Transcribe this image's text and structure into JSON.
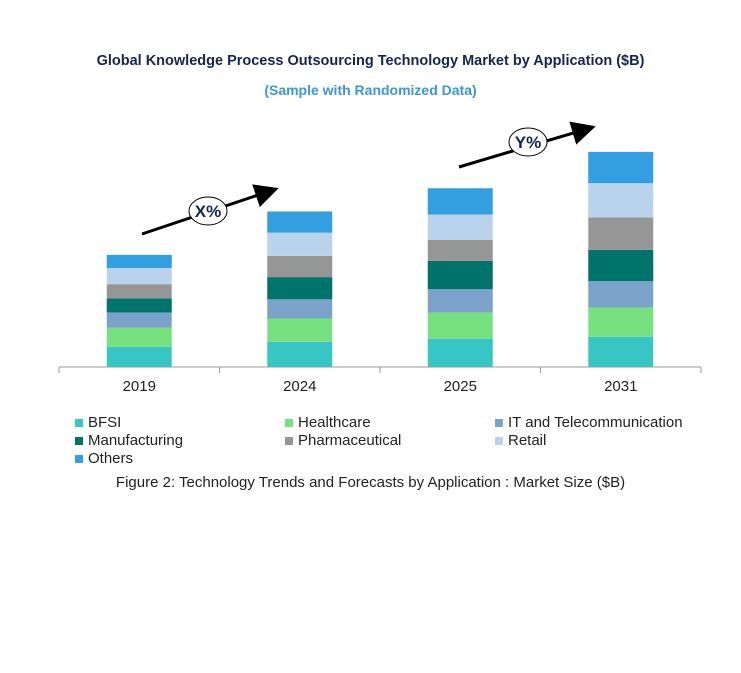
{
  "chart_data": {
    "type": "bar",
    "stacked": true,
    "title": "Global Knowledge Process Outsourcing Technology Market by Application ($B)",
    "subtitle": "(Sample with Randomized Data)",
    "caption": "Figure 2: Technology  Trends  and Forecasts by Application : Market Size ($B)",
    "categories": [
      "2019",
      "2024",
      "2025",
      "2031"
    ],
    "series": [
      {
        "name": "BFSI",
        "color": "#38c6c4",
        "values": [
          2.0,
          2.5,
          2.8,
          3.0
        ]
      },
      {
        "name": "Healthcare",
        "color": "#77e07f",
        "values": [
          1.9,
          2.3,
          2.6,
          2.9
        ]
      },
      {
        "name": "IT and Telecommunication",
        "color": "#7ba2c8",
        "values": [
          1.5,
          1.9,
          2.3,
          2.6
        ]
      },
      {
        "name": "Manufacturing",
        "color": "#00736a",
        "values": [
          1.4,
          2.2,
          2.8,
          3.1
        ]
      },
      {
        "name": "Pharmaceutical",
        "color": "#969696",
        "values": [
          1.4,
          2.1,
          2.1,
          3.2
        ]
      },
      {
        "name": "Retail",
        "color": "#b9d3ec",
        "values": [
          1.6,
          2.3,
          2.5,
          3.4
        ]
      },
      {
        "name": "Others",
        "color": "#339fe0",
        "values": [
          1.3,
          2.1,
          2.6,
          3.1
        ]
      }
    ],
    "annotations": [
      {
        "label": "X%",
        "from": "2019",
        "to": "2024"
      },
      {
        "label": "Y%",
        "from": "2025",
        "to": "2031"
      }
    ],
    "y_axis_shown": false,
    "grid": false,
    "legend_position": "bottom"
  }
}
